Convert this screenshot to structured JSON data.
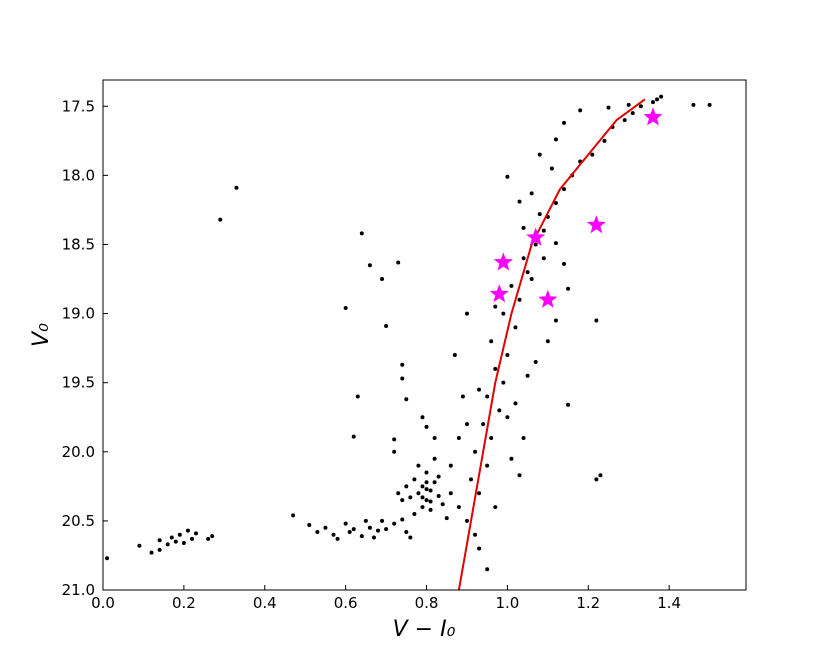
{
  "chart_data": {
    "type": "scatter",
    "xlabel": "V − I₀",
    "ylabel": "V₀",
    "xlim": [
      0,
      1.59
    ],
    "ylim": [
      21.0,
      17.31
    ],
    "xticks": [
      {
        "value": 0,
        "label": "0.0"
      },
      0.2,
      0.4,
      0.6,
      0.8,
      {
        "value": 1,
        "label": "1.0"
      },
      1.2,
      1.4
    ],
    "yticks": [
      17.5,
      {
        "value": 18,
        "label": "18.0"
      },
      18.5,
      {
        "value": 19,
        "label": "19.0"
      },
      19.5,
      {
        "value": 20,
        "label": "20.0"
      },
      20.5,
      {
        "value": 21,
        "label": "21.0"
      }
    ],
    "series": [
      {
        "marker": "dot",
        "color": "#000000",
        "x": [
          0.01,
          0.09,
          0.12,
          0.14,
          0.14,
          0.16,
          0.17,
          0.18,
          0.19,
          0.2,
          0.21,
          0.22,
          0.23,
          0.26,
          0.27,
          0.29,
          0.33,
          0.47,
          0.51,
          0.53,
          0.55,
          0.57,
          0.58,
          0.6,
          0.61,
          0.62,
          0.64,
          0.65,
          0.66,
          0.67,
          0.68,
          0.69,
          0.7,
          0.72,
          0.74,
          0.75,
          0.76,
          0.64,
          0.66,
          0.69,
          0.73,
          0.6,
          0.63,
          0.62,
          0.7,
          0.74,
          0.74,
          0.75,
          0.72,
          0.72,
          0.77,
          0.78,
          0.79,
          0.8,
          0.81,
          0.82,
          0.83,
          0.79,
          0.8,
          0.81,
          0.78,
          0.82,
          0.84,
          0.76,
          0.77,
          0.8,
          0.83,
          0.79,
          0.81,
          0.8,
          0.82,
          0.79,
          0.8,
          0.85,
          0.86,
          0.75,
          0.74,
          0.73,
          0.9,
          0.92,
          0.88,
          0.93,
          0.91,
          0.95,
          0.92,
          0.96,
          0.94,
          0.98,
          0.95,
          0.99,
          0.97,
          1.0,
          0.96,
          1.02,
          0.99,
          1.03,
          1.01,
          1.05,
          1.04,
          1.07,
          1.09,
          1.1,
          1.12,
          1.14,
          1.16,
          1.18,
          1.21,
          1.24,
          1.26,
          1.29,
          1.31,
          1.33,
          1.37,
          1.38,
          1.36,
          1.46,
          1.5,
          1.3,
          1.25,
          1.18,
          1.14,
          1.12,
          1.08,
          1.0,
          1.11,
          1.06,
          1.03,
          1.08,
          1.04,
          1.12,
          1.09,
          1.14,
          1.06,
          1.15,
          0.97,
          1.12,
          1.1,
          1.07,
          1.05,
          0.93,
          1.02,
          1.0,
          1.15,
          1.22,
          0.9,
          0.87,
          0.89,
          1.01,
          1.03,
          0.97,
          0.93,
          0.95,
          1.23,
          1.22,
          0.86,
          0.88,
          0.9,
          1.04
        ],
        "y": [
          20.77,
          20.68,
          20.73,
          20.71,
          20.64,
          20.67,
          20.62,
          20.65,
          20.6,
          20.66,
          20.57,
          20.63,
          20.59,
          20.63,
          20.61,
          18.32,
          18.09,
          20.46,
          20.53,
          20.58,
          20.55,
          20.6,
          20.63,
          20.52,
          20.58,
          20.56,
          20.61,
          20.5,
          20.55,
          20.62,
          20.57,
          20.5,
          20.56,
          20.52,
          20.49,
          20.58,
          20.62,
          18.42,
          18.65,
          18.75,
          18.63,
          18.96,
          19.6,
          19.89,
          19.09,
          19.37,
          19.47,
          19.62,
          19.91,
          20.0,
          20.2,
          20.3,
          20.25,
          20.35,
          20.28,
          20.22,
          20.32,
          20.4,
          20.15,
          20.42,
          20.1,
          20.05,
          20.38,
          20.33,
          20.45,
          20.27,
          20.18,
          20.33,
          20.36,
          20.22,
          19.9,
          19.75,
          19.82,
          20.48,
          20.3,
          20.25,
          20.35,
          20.3,
          20.5,
          20.6,
          20.4,
          20.3,
          20.2,
          20.1,
          20.0,
          19.9,
          19.8,
          19.7,
          19.6,
          19.5,
          19.4,
          19.3,
          19.2,
          19.1,
          19.0,
          18.9,
          18.8,
          18.7,
          18.6,
          18.5,
          18.4,
          18.3,
          18.2,
          18.1,
          18.0,
          17.9,
          17.85,
          17.75,
          17.65,
          17.6,
          17.55,
          17.5,
          17.45,
          17.43,
          17.47,
          17.49,
          17.49,
          17.49,
          17.51,
          17.53,
          17.62,
          17.74,
          17.85,
          18.01,
          17.95,
          18.13,
          18.19,
          18.28,
          18.38,
          18.49,
          18.6,
          18.64,
          18.75,
          18.82,
          18.95,
          19.05,
          19.2,
          19.35,
          19.45,
          19.55,
          19.65,
          19.75,
          19.66,
          19.05,
          19.0,
          19.3,
          19.6,
          20.05,
          20.17,
          20.4,
          20.7,
          20.85,
          20.17,
          20.2,
          20.1,
          19.9,
          19.8,
          19.9
        ]
      },
      {
        "marker": "line",
        "color": "#e00000",
        "x": [
          0.88,
          0.91,
          0.94,
          0.97,
          1.01,
          1.06,
          1.13,
          1.2,
          1.27,
          1.34
        ],
        "y": [
          21.0,
          20.5,
          20.0,
          19.5,
          19.0,
          18.5,
          18.1,
          17.85,
          17.6,
          17.45
        ]
      },
      {
        "marker": "star",
        "color": "#ff00ff",
        "x": [
          0.99,
          0.98,
          1.07,
          1.1,
          1.22,
          1.36
        ],
        "y": [
          18.63,
          18.86,
          18.45,
          18.9,
          18.36,
          17.58
        ]
      }
    ]
  }
}
